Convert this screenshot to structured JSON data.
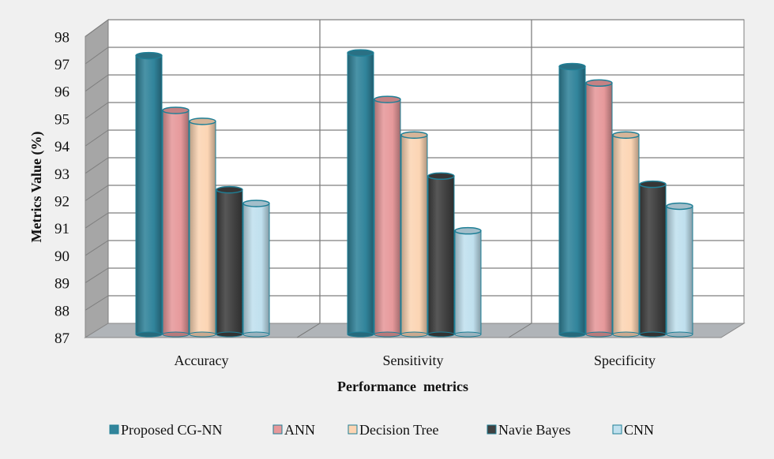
{
  "chart_data": {
    "type": "bar",
    "style": "3d-cylinder",
    "title": "",
    "xlabel": "Performance  metrics",
    "ylabel": "Metrics Value (%)",
    "ylim": [
      87,
      98
    ],
    "yticks": [
      "87",
      "88",
      "89",
      "90",
      "91",
      "92",
      "93",
      "94",
      "95",
      "96",
      "97",
      "98"
    ],
    "grid": true,
    "legend_position": "bottom",
    "categories": [
      "Accuracy",
      "Sensitivity",
      "Specificity"
    ],
    "series": [
      {
        "name": "Proposed CG-NN",
        "color": "#31849b",
        "values": [
          97.3,
          97.4,
          96.9
        ]
      },
      {
        "name": "ANN",
        "color": "#e6999b",
        "values": [
          95.3,
          95.7,
          96.3
        ]
      },
      {
        "name": "Decision Tree",
        "color": "#fcd5b4",
        "values": [
          94.9,
          94.4,
          94.4
        ]
      },
      {
        "name": "Navie Bayes",
        "color": "#404040",
        "values": [
          92.4,
          92.9,
          92.6
        ]
      },
      {
        "name": "CNN",
        "color": "#c0e0ee",
        "values": [
          91.9,
          90.9,
          91.8
        ]
      }
    ]
  }
}
